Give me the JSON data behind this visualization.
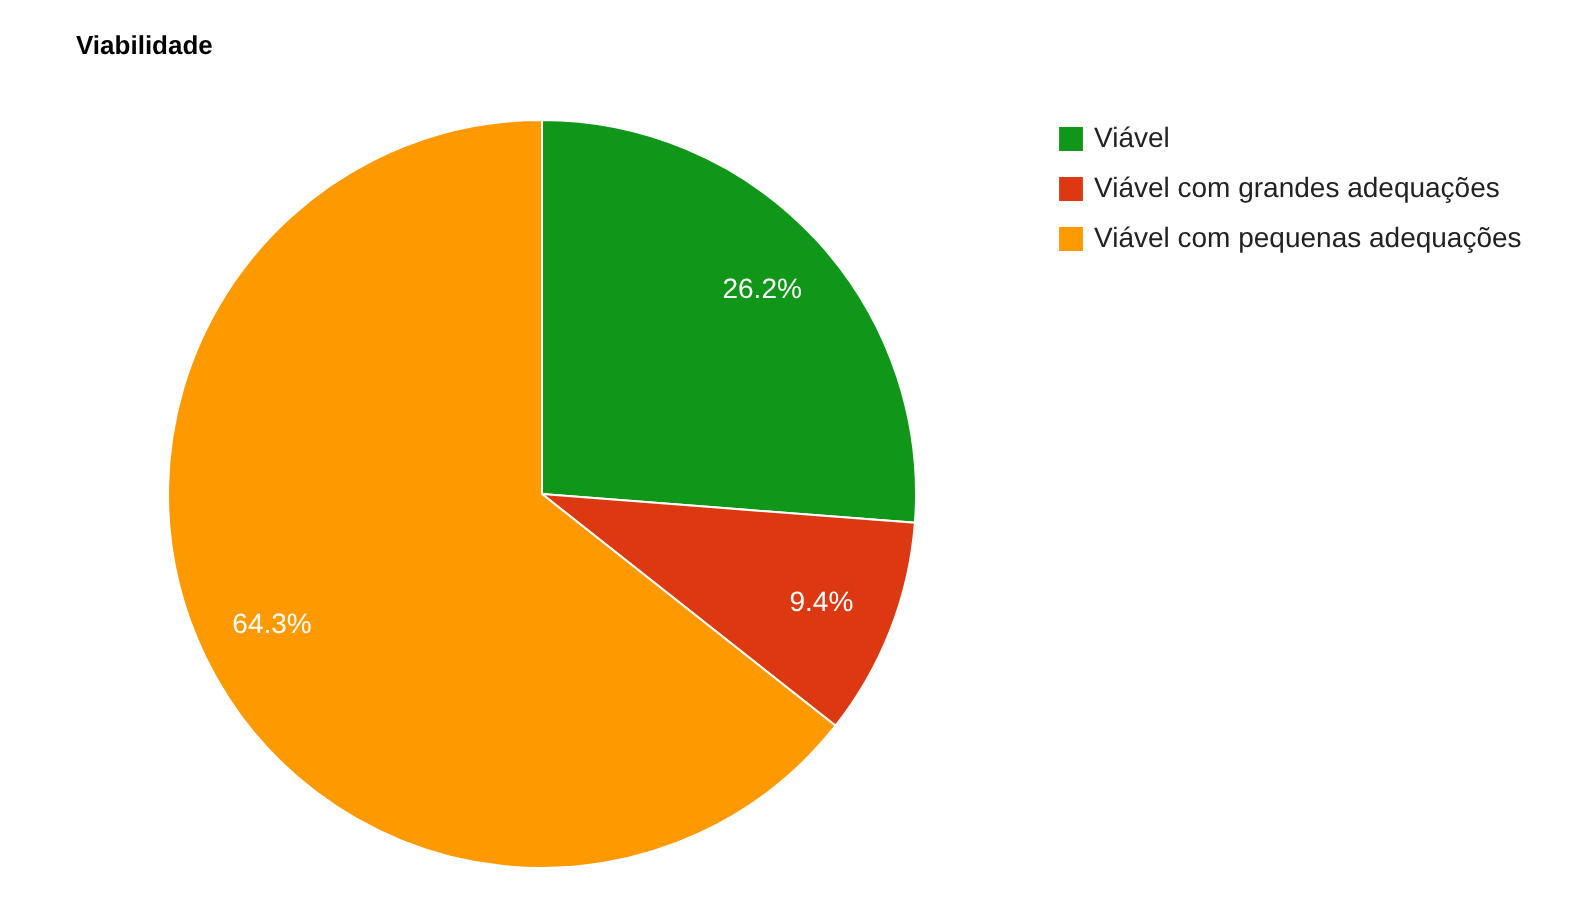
{
  "chart_data": {
    "type": "pie",
    "title": "Viabilidade",
    "categories": [
      "Viável",
      "Viável com grandes adequações",
      "Viável com pequenas adequações"
    ],
    "values": [
      26.2,
      9.4,
      64.3
    ],
    "colors": [
      "#109618",
      "#dc3912",
      "#ff9900"
    ],
    "value_labels": [
      "26.2%",
      "9.4%",
      "64.3%"
    ],
    "legend": "top right"
  }
}
